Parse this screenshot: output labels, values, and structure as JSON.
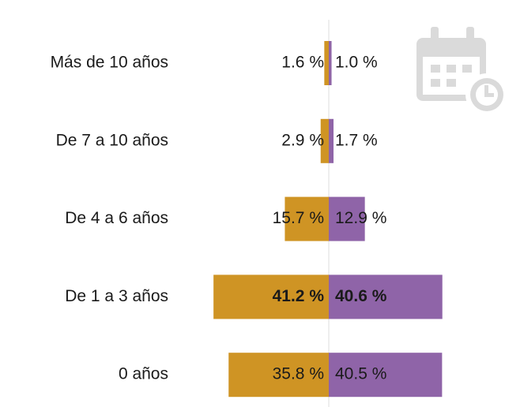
{
  "chart_data": {
    "type": "butterfly",
    "categories": [
      "Más de 10 años",
      "De 7 a 10 años",
      "De 4 a 6 años",
      "De 1 a 3 años",
      "0 años"
    ],
    "series": [
      {
        "color": "#cf9424",
        "values": [
          1.6,
          2.9,
          15.7,
          41.2,
          35.8
        ],
        "value_labels": [
          "1.6 %",
          "2.9 %",
          "15.7 %",
          "41.2 %",
          "35.8 %"
        ]
      },
      {
        "color": "#8f64a8",
        "values": [
          1.0,
          1.7,
          12.9,
          40.6,
          40.5
        ],
        "value_labels": [
          "1.0 %",
          "1.7 %",
          "12.9 %",
          "40.6 %",
          "40.5 %"
        ]
      }
    ]
  }
}
